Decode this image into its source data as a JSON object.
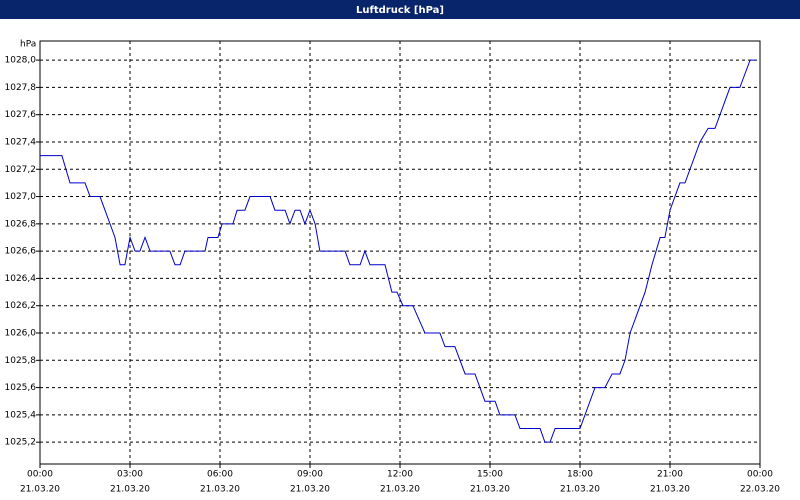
{
  "chart_data": {
    "type": "line",
    "title": "Luftdruck [hPa]",
    "y_label": "hPa",
    "xlim": [
      0,
      24
    ],
    "ylim": [
      1025.04,
      1028.14
    ],
    "grid": true,
    "xticks": [
      {
        "value": 0,
        "label": "00:00"
      },
      {
        "value": 3,
        "label": "03:00"
      },
      {
        "value": 6,
        "label": "06:00"
      },
      {
        "value": 9,
        "label": "09:00"
      },
      {
        "value": 12,
        "label": "12:00"
      },
      {
        "value": 15,
        "label": "15:00"
      },
      {
        "value": 18,
        "label": "18:00"
      },
      {
        "value": 21,
        "label": "21:00"
      },
      {
        "value": 24,
        "label": "00:00"
      }
    ],
    "xtick_dates": [
      "21.03.20",
      "21.03.20",
      "21.03.20",
      "21.03.20",
      "21.03.20",
      "21.03.20",
      "21.03.20",
      "21.03.20",
      "22.03.20"
    ],
    "yticks": [
      {
        "value": 1025.2,
        "label": "1025,2"
      },
      {
        "value": 1025.4,
        "label": "1025,4"
      },
      {
        "value": 1025.6,
        "label": "1025,6"
      },
      {
        "value": 1025.8,
        "label": "1025,8"
      },
      {
        "value": 1026.0,
        "label": "1026,0"
      },
      {
        "value": 1026.2,
        "label": "1026,2"
      },
      {
        "value": 1026.4,
        "label": "1026,4"
      },
      {
        "value": 1026.6,
        "label": "1026,6"
      },
      {
        "value": 1026.8,
        "label": "1026,8"
      },
      {
        "value": 1027.0,
        "label": "1027,0"
      },
      {
        "value": 1027.2,
        "label": "1027,2"
      },
      {
        "value": 1027.4,
        "label": "1027,4"
      },
      {
        "value": 1027.6,
        "label": "1027,6"
      },
      {
        "value": 1027.8,
        "label": "1027,8"
      },
      {
        "value": 1028.0,
        "label": "1028,0"
      }
    ],
    "series": [
      {
        "color": "#0000cc",
        "x": [
          0,
          0.73,
          1.0,
          1.5,
          1.67,
          2.0,
          2.5,
          2.67,
          2.83,
          3.0,
          3.17,
          3.33,
          3.5,
          3.67,
          4.33,
          4.5,
          4.67,
          4.83,
          5.5,
          5.6,
          5.93,
          6.07,
          6.43,
          6.57,
          6.83,
          7.0,
          7.67,
          7.83,
          8.17,
          8.33,
          8.5,
          8.67,
          8.83,
          9.0,
          9.17,
          9.33,
          10.17,
          10.33,
          10.67,
          10.83,
          11.0,
          11.5,
          11.73,
          11.9,
          12.1,
          12.43,
          12.83,
          13.33,
          13.5,
          13.83,
          14.17,
          14.5,
          14.83,
          15.17,
          15.33,
          15.83,
          16.0,
          16.67,
          16.83,
          17.0,
          17.17,
          18.0,
          18.5,
          18.83,
          19.07,
          19.33,
          19.5,
          19.67,
          20.17,
          20.4,
          20.67,
          20.83,
          21.0,
          21.33,
          21.5,
          22.0,
          22.27,
          22.5,
          23.0,
          23.33,
          23.67,
          23.83
        ],
        "values": [
          1027.3,
          1027.3,
          1027.1,
          1027.1,
          1027.0,
          1027.0,
          1026.7,
          1026.5,
          1026.5,
          1026.7,
          1026.6,
          1026.6,
          1026.7,
          1026.6,
          1026.6,
          1026.5,
          1026.5,
          1026.6,
          1026.6,
          1026.7,
          1026.7,
          1026.8,
          1026.8,
          1026.9,
          1026.9,
          1027.0,
          1027.0,
          1026.9,
          1026.9,
          1026.8,
          1026.9,
          1026.9,
          1026.8,
          1026.9,
          1026.8,
          1026.6,
          1026.6,
          1026.5,
          1026.5,
          1026.6,
          1026.5,
          1026.5,
          1026.3,
          1026.3,
          1026.2,
          1026.2,
          1026.0,
          1026.0,
          1025.9,
          1025.9,
          1025.7,
          1025.7,
          1025.5,
          1025.5,
          1025.4,
          1025.4,
          1025.3,
          1025.3,
          1025.2,
          1025.2,
          1025.3,
          1025.3,
          1025.6,
          1025.6,
          1025.7,
          1025.7,
          1025.8,
          1026.0,
          1026.3,
          1026.5,
          1026.7,
          1026.7,
          1026.9,
          1027.1,
          1027.1,
          1027.4,
          1027.5,
          1027.5,
          1027.8,
          1027.8,
          1028.0,
          1028.0
        ]
      }
    ]
  }
}
